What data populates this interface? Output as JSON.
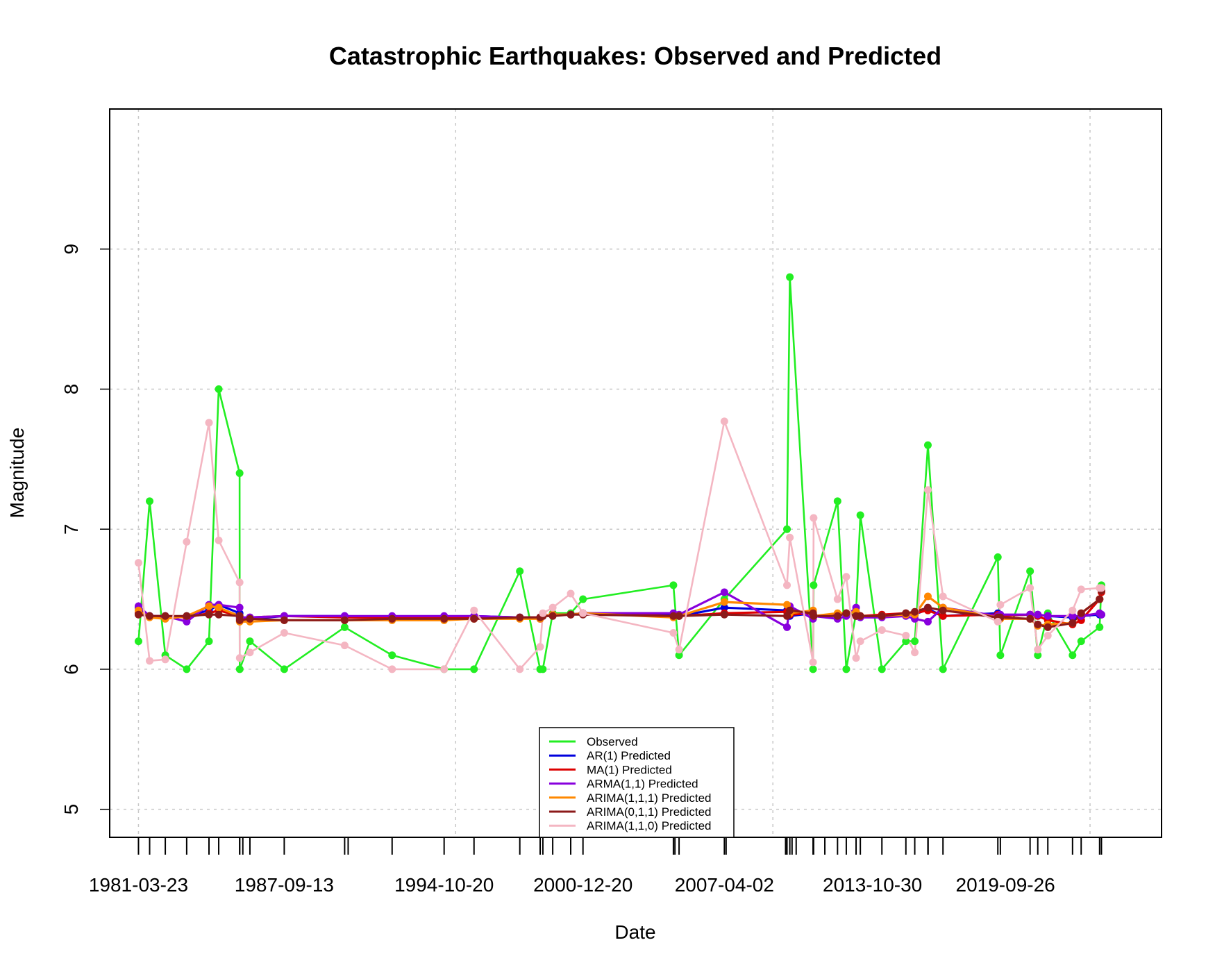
{
  "chart_data": {
    "type": "line",
    "title": "Catastrophic Earthquakes: Observed and Predicted",
    "xlabel": "Date",
    "ylabel": "Magnitude",
    "ylim": [
      4.8,
      10.0
    ],
    "yticks": [
      5,
      6,
      7,
      8,
      9
    ],
    "xlim": [
      "1979-12-12",
      "2026-09-02"
    ],
    "xtick_labels": [
      "1981-03-23",
      "1987-09-13",
      "1994-10-20",
      "2000-12-20",
      "2007-04-02",
      "2013-10-30",
      "2019-09-26"
    ],
    "xgrid_dates": [
      "1981-03-23",
      "1995-04-25",
      "2009-05-28",
      "2023-06-30"
    ],
    "grid": true,
    "legend_position": "bottom-center",
    "dates": [
      "1981-03-23",
      "1981-09-20",
      "1982-06-01",
      "1983-05-14",
      "1984-05-10",
      "1984-10-15",
      "1985-09-19",
      "1985-09-21",
      "1986-03-05",
      "1987-09-13",
      "1990-05-20",
      "1992-06-28",
      "1994-10-20",
      "1996-02-17",
      "1998-03-01",
      "1999-01-25",
      "1999-03-10",
      "1999-08-17",
      "2000-06-04",
      "2000-12-20",
      "2004-12-26",
      "2005-03-28",
      "2007-04-02",
      "2010-01-12",
      "2010-02-27",
      "2011-03-11",
      "2011-03-20",
      "2012-04-11",
      "2012-08-31",
      "2013-02-06",
      "2013-04-16",
      "2014-04-01",
      "2015-04-25",
      "2015-09-16",
      "2016-04-16",
      "2016-12-17",
      "2019-05-26",
      "2019-07-06",
      "2020-10-30",
      "2021-03-04",
      "2021-08-14",
      "2022-09-19",
      "2023-02-06",
      "2023-12-02",
      "2024-01-01"
    ],
    "series": [
      {
        "name": "Observed",
        "color": "#22ee22",
        "values": [
          6.2,
          7.2,
          6.1,
          6.0,
          6.2,
          8.0,
          7.4,
          6.0,
          6.2,
          6.0,
          6.3,
          6.1,
          6.0,
          6.0,
          6.7,
          6.0,
          6.0,
          6.4,
          6.4,
          6.5,
          6.6,
          6.1,
          6.5,
          7.0,
          8.8,
          6.0,
          6.6,
          7.2,
          6.0,
          6.4,
          7.1,
          6.0,
          6.2,
          6.2,
          7.6,
          6.0,
          6.8,
          6.1,
          6.7,
          6.1,
          6.4,
          6.1,
          6.2,
          6.3,
          6.6
        ]
      },
      {
        "name": "AR(1) Predicted",
        "color": "#0000dd",
        "values": [
          6.44,
          6.38,
          6.37,
          6.38,
          6.42,
          6.46,
          6.4,
          6.37,
          6.36,
          6.38,
          6.38,
          6.37,
          6.37,
          6.38,
          6.37,
          6.37,
          6.38,
          6.39,
          6.39,
          6.4,
          6.39,
          6.38,
          6.44,
          6.42,
          6.38,
          6.4,
          6.38,
          6.39,
          6.4,
          6.38,
          6.38,
          6.38,
          6.39,
          6.39,
          6.43,
          6.38,
          6.4,
          6.38,
          6.39,
          6.39,
          6.38,
          6.37,
          6.38,
          6.39,
          6.39
        ]
      },
      {
        "name": "MA(1) Predicted",
        "color": "#dd0000",
        "values": [
          6.4,
          6.38,
          6.38,
          6.37,
          6.4,
          6.42,
          6.38,
          6.36,
          6.37,
          6.38,
          6.37,
          6.37,
          6.37,
          6.37,
          6.37,
          6.37,
          6.38,
          6.39,
          6.39,
          6.4,
          6.38,
          6.38,
          6.4,
          6.41,
          6.39,
          6.4,
          6.38,
          6.39,
          6.4,
          6.38,
          6.38,
          6.39,
          6.4,
          6.4,
          6.42,
          6.38,
          6.39,
          6.38,
          6.39,
          6.38,
          6.35,
          6.32,
          6.35,
          6.5,
          6.55
        ]
      },
      {
        "name": "ARMA(1,1) Predicted",
        "color": "#8800dd",
        "values": [
          6.45,
          6.38,
          6.38,
          6.34,
          6.46,
          6.46,
          6.44,
          6.37,
          6.37,
          6.38,
          6.38,
          6.38,
          6.38,
          6.38,
          6.37,
          6.36,
          6.38,
          6.39,
          6.39,
          6.4,
          6.4,
          6.39,
          6.55,
          6.3,
          6.45,
          6.36,
          6.38,
          6.36,
          6.38,
          6.44,
          6.37,
          6.37,
          6.38,
          6.36,
          6.34,
          6.44,
          6.38,
          6.39,
          6.39,
          6.39,
          6.38,
          6.38,
          6.38,
          6.4,
          6.39
        ]
      },
      {
        "name": "ARIMA(1,1,1) Predicted",
        "color": "#ff8800",
        "values": [
          6.42,
          6.37,
          6.36,
          6.38,
          6.45,
          6.44,
          6.38,
          6.34,
          6.34,
          6.35,
          6.35,
          6.35,
          6.35,
          6.36,
          6.36,
          6.36,
          6.38,
          6.39,
          6.39,
          6.4,
          6.37,
          6.38,
          6.48,
          6.46,
          6.4,
          6.42,
          6.38,
          6.4,
          6.4,
          6.41,
          6.38,
          6.38,
          6.39,
          6.39,
          6.52,
          6.44,
          6.37,
          6.36,
          6.36,
          6.31,
          6.32,
          6.33,
          6.4,
          6.5,
          6.56
        ]
      },
      {
        "name": "ARIMA(0,1,1) Predicted",
        "color": "#8b1a1a",
        "values": [
          6.39,
          6.38,
          6.38,
          6.38,
          6.39,
          6.39,
          6.38,
          6.35,
          6.36,
          6.35,
          6.35,
          6.36,
          6.36,
          6.36,
          6.37,
          6.37,
          6.38,
          6.38,
          6.39,
          6.39,
          6.38,
          6.38,
          6.39,
          6.38,
          6.42,
          6.4,
          6.38,
          6.38,
          6.4,
          6.38,
          6.38,
          6.38,
          6.4,
          6.41,
          6.44,
          6.42,
          6.37,
          6.37,
          6.36,
          6.32,
          6.3,
          6.33,
          6.4,
          6.5,
          6.56
        ]
      },
      {
        "name": "ARIMA(1,1,0) Predicted",
        "color": "#f4b6c2",
        "values": [
          6.76,
          6.06,
          6.07,
          6.91,
          7.76,
          6.92,
          6.62,
          6.08,
          6.12,
          6.26,
          6.17,
          6.0,
          6.0,
          6.42,
          6.0,
          6.16,
          6.4,
          6.44,
          6.54,
          6.4,
          6.26,
          6.14,
          7.77,
          6.6,
          6.94,
          6.05,
          7.08,
          6.5,
          6.66,
          6.08,
          6.2,
          6.28,
          6.24,
          6.12,
          7.28,
          6.52,
          6.34,
          6.46,
          6.58,
          6.14,
          6.24,
          6.42,
          6.57,
          6.58,
          6.58
        ]
      }
    ],
    "rug_dates": [
      "1981-03-23",
      "1981-09-20",
      "1982-06-01",
      "1983-05-14",
      "1984-05-10",
      "1984-10-15",
      "1985-09-19",
      "1985-09-21",
      "1985-11-10",
      "1986-03-05",
      "1987-09-13",
      "1990-05-20",
      "1990-07-16",
      "1992-06-28",
      "1994-10-20",
      "1996-02-17",
      "1998-03-01",
      "1999-01-25",
      "1999-03-10",
      "1999-08-17",
      "2000-06-04",
      "2000-12-20",
      "2004-12-26",
      "2005-01-20",
      "2005-03-28",
      "2007-04-02",
      "2007-04-30",
      "2009-12-20",
      "2010-01-12",
      "2010-02-27",
      "2010-04-04",
      "2010-06-10",
      "2011-03-11",
      "2011-03-20",
      "2011-09-18",
      "2012-04-11",
      "2012-08-31",
      "2013-02-06",
      "2013-04-16",
      "2014-04-01",
      "2015-04-25",
      "2015-09-16",
      "2016-04-16",
      "2016-04-20",
      "2016-12-17",
      "2019-05-26",
      "2019-07-06",
      "2020-10-30",
      "2021-03-04",
      "2021-08-14",
      "2022-09-19",
      "2023-02-06",
      "2023-12-02",
      "2024-01-01"
    ]
  }
}
